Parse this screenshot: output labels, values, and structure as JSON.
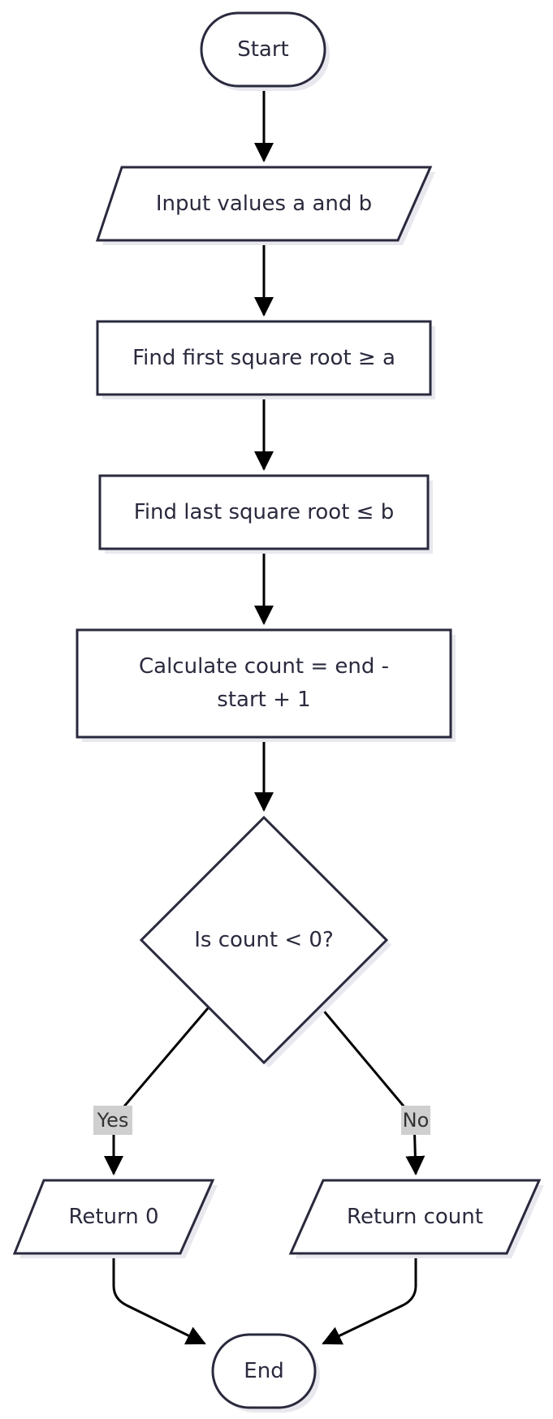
{
  "nodes": {
    "start": "Start",
    "input": "Input values a and b",
    "find_first": "Find first square root ≥ a",
    "find_last": "Find last square root ≤ b",
    "calc_line1": "Calculate count = end -",
    "calc_line2": "start + 1",
    "decision": "Is count < 0?",
    "return_zero": "Return 0",
    "return_count": "Return count",
    "end": "End"
  },
  "edges": {
    "yes_label": "Yes",
    "no_label": "No"
  }
}
